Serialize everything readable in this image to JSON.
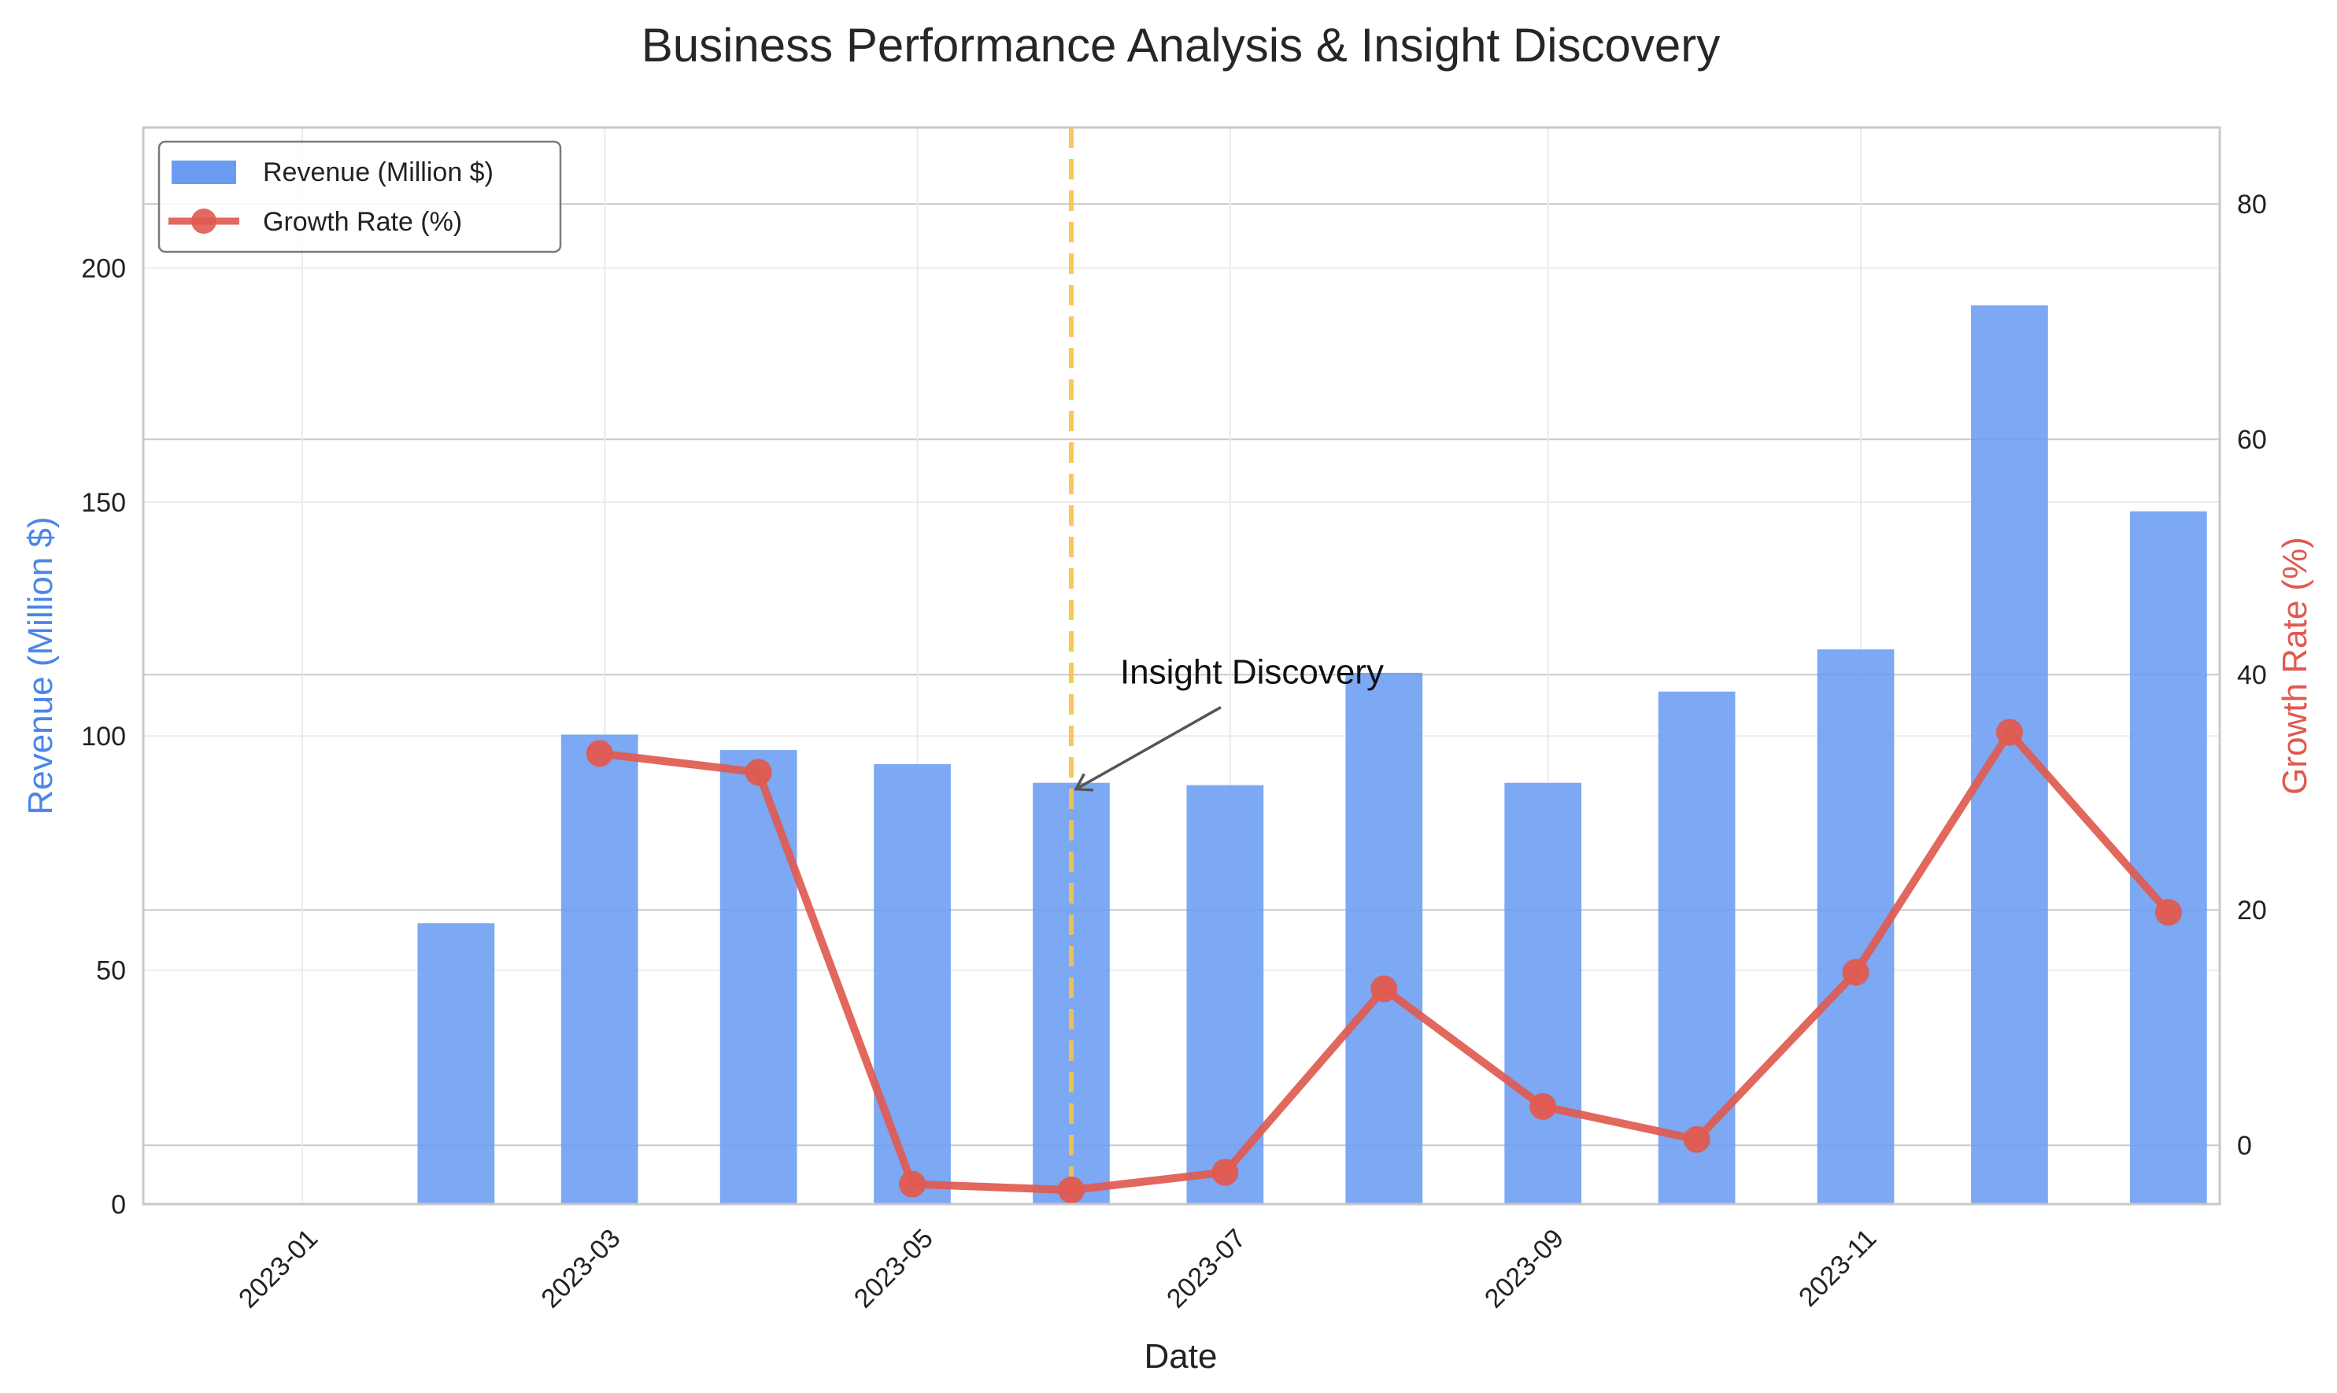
{
  "chart_data": {
    "type": "bar",
    "title": "Business Performance Analysis & Insight Discovery",
    "xlabel": "Date",
    "ylabel": "Revenue (Million $)",
    "y2label": "Growth Rate (%)",
    "x": [
      "2023-01-31",
      "2023-02-28",
      "2023-03-31",
      "2023-04-30",
      "2023-05-31",
      "2023-06-30",
      "2023-07-31",
      "2023-08-31",
      "2023-09-30",
      "2023-10-31",
      "2023-11-30",
      "2023-12-31"
    ],
    "xticks": [
      "2023-01",
      "2023-03",
      "2023-05",
      "2023-07",
      "2023-09",
      "2023-11"
    ],
    "xtick_dates": [
      "2023-01-01",
      "2023-03-01",
      "2023-05-01",
      "2023-07-01",
      "2023-09-01",
      "2023-11-01"
    ],
    "xlim": [
      "2022-12-01",
      "2024-01-10"
    ],
    "ylim": [
      0,
      230
    ],
    "y2lim": [
      -5,
      86.5
    ],
    "yticks": [
      0,
      50,
      100,
      150,
      200
    ],
    "y2ticks": [
      0,
      20,
      40,
      60,
      80
    ],
    "grid": true,
    "legend_position": "top-left",
    "series": [
      {
        "name": "Revenue (Million $)",
        "type": "bar",
        "axis": "left",
        "color": "#6a9cf2",
        "values": [
          60,
          100.3,
          97,
          94,
          90,
          89.5,
          113.5,
          90,
          109.5,
          118.5,
          192,
          148
        ]
      },
      {
        "name": "Growth Rate (%)",
        "type": "line",
        "axis": "right",
        "color": "#e05a4f",
        "values": [
          null,
          33.3,
          31.7,
          -3.3,
          -3.8,
          -2.3,
          13.3,
          3.3,
          0.5,
          14.7,
          35.1,
          19.8
        ]
      }
    ],
    "annotation": {
      "text": "Insight Discovery",
      "date": "2023-05-31",
      "value": 90,
      "line_color": "#f7c343"
    }
  }
}
